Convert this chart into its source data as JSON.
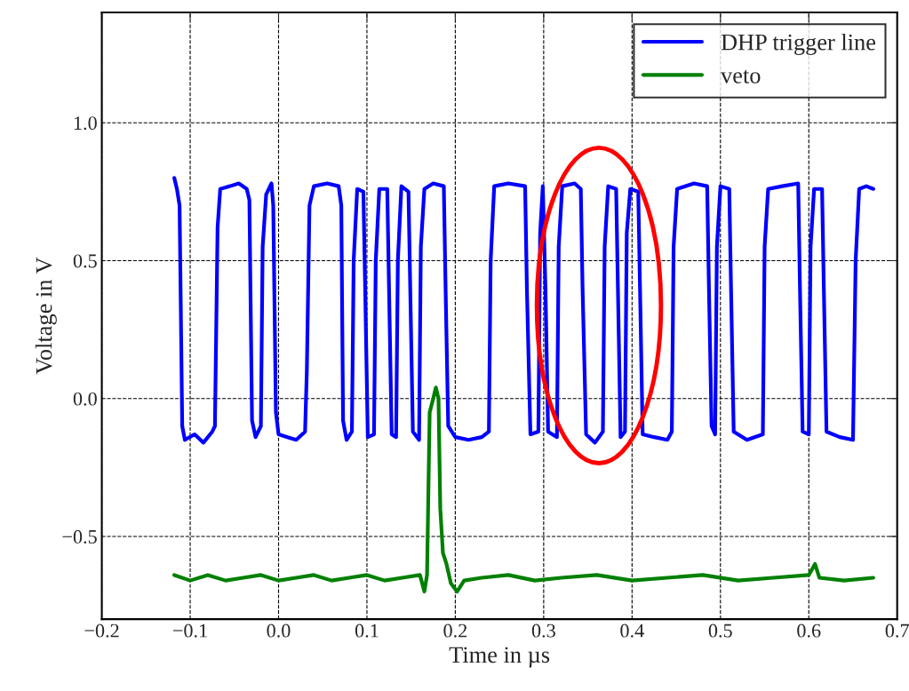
{
  "chart_data": {
    "type": "line",
    "xlabel": "Time in µs",
    "ylabel": "Voltage in V",
    "xlim": [
      -0.2,
      0.7
    ],
    "xticks": [
      {
        "value": -0.2,
        "label": "−0.2"
      },
      {
        "value": -0.1,
        "label": "−0.1"
      },
      {
        "value": 0.0,
        "label": "0.0"
      },
      {
        "value": 0.1,
        "label": "0.1"
      },
      {
        "value": 0.2,
        "label": "0.2"
      },
      {
        "value": 0.3,
        "label": "0.3"
      },
      {
        "value": 0.4,
        "label": "0.4"
      },
      {
        "value": 0.5,
        "label": "0.5"
      },
      {
        "value": 0.6,
        "label": "0.6"
      },
      {
        "value": 0.7,
        "label": "0.7"
      }
    ],
    "ylim": [
      -0.8,
      1.4
    ],
    "yticks": [
      {
        "value": -0.5,
        "label": "−0.5"
      },
      {
        "value": 0.0,
        "label": "0.0"
      },
      {
        "value": 0.5,
        "label": "0.5"
      },
      {
        "value": 1.0,
        "label": "1.0"
      }
    ],
    "grid": true,
    "legend": "top right",
    "marker": "none",
    "line_style": "solid",
    "series": [
      {
        "name": "DHP trigger line",
        "color": "#0000ff",
        "x": [
          -0.118,
          -0.115,
          -0.112,
          -0.109,
          -0.106,
          -0.095,
          -0.085,
          -0.075,
          -0.072,
          -0.069,
          -0.066,
          -0.055,
          -0.045,
          -0.036,
          -0.033,
          -0.03,
          -0.026,
          -0.02,
          -0.018,
          -0.014,
          -0.008,
          -0.006,
          -0.003,
          0.0,
          0.01,
          0.02,
          0.03,
          0.032,
          0.035,
          0.04,
          0.055,
          0.068,
          0.071,
          0.073,
          0.077,
          0.083,
          0.085,
          0.089,
          0.096,
          0.098,
          0.101,
          0.108,
          0.11,
          0.114,
          0.123,
          0.125,
          0.128,
          0.133,
          0.135,
          0.139,
          0.147,
          0.149,
          0.152,
          0.159,
          0.161,
          0.165,
          0.175,
          0.187,
          0.189,
          0.192,
          0.2,
          0.215,
          0.23,
          0.238,
          0.24,
          0.244,
          0.26,
          0.279,
          0.281,
          0.285,
          0.294,
          0.296,
          0.299,
          0.302,
          0.305,
          0.315,
          0.317,
          0.321,
          0.335,
          0.342,
          0.344,
          0.348,
          0.358,
          0.367,
          0.369,
          0.373,
          0.382,
          0.384,
          0.387,
          0.392,
          0.394,
          0.398,
          0.407,
          0.409,
          0.412,
          0.425,
          0.44,
          0.445,
          0.447,
          0.451,
          0.47,
          0.485,
          0.487,
          0.49,
          0.494,
          0.496,
          0.5,
          0.51,
          0.512,
          0.515,
          0.53,
          0.548,
          0.55,
          0.554,
          0.57,
          0.588,
          0.59,
          0.593,
          0.6,
          0.602,
          0.606,
          0.615,
          0.617,
          0.62,
          0.635,
          0.65,
          0.653,
          0.657,
          0.665,
          0.673
        ],
        "values": [
          0.8,
          0.76,
          0.7,
          -0.1,
          -0.15,
          -0.13,
          -0.16,
          -0.12,
          -0.1,
          0.62,
          0.76,
          0.77,
          0.78,
          0.76,
          0.72,
          -0.08,
          -0.14,
          -0.1,
          0.55,
          0.74,
          0.78,
          0.7,
          -0.05,
          -0.13,
          -0.14,
          -0.15,
          -0.12,
          0.1,
          0.7,
          0.77,
          0.78,
          0.77,
          0.7,
          -0.08,
          -0.15,
          -0.12,
          0.5,
          0.76,
          0.75,
          0.4,
          -0.14,
          -0.13,
          0.5,
          0.76,
          0.76,
          0.4,
          -0.13,
          -0.14,
          0.5,
          0.77,
          0.75,
          0.4,
          -0.12,
          -0.15,
          0.55,
          0.76,
          0.78,
          0.77,
          0.4,
          -0.1,
          -0.14,
          -0.15,
          -0.14,
          -0.12,
          0.5,
          0.77,
          0.78,
          0.77,
          0.4,
          -0.13,
          -0.12,
          0.6,
          0.77,
          0.4,
          -0.12,
          -0.14,
          0.55,
          0.77,
          0.78,
          0.76,
          0.4,
          -0.13,
          -0.16,
          -0.12,
          0.55,
          0.77,
          0.76,
          0.4,
          -0.14,
          -0.12,
          0.6,
          0.76,
          0.75,
          0.4,
          -0.13,
          -0.14,
          -0.15,
          -0.12,
          0.55,
          0.76,
          0.78,
          0.77,
          0.4,
          -0.1,
          -0.13,
          0.55,
          0.77,
          0.76,
          0.4,
          -0.12,
          -0.15,
          -0.13,
          0.55,
          0.76,
          0.77,
          0.78,
          0.4,
          -0.12,
          -0.13,
          0.55,
          0.76,
          0.76,
          0.4,
          -0.12,
          -0.14,
          -0.15,
          0.5,
          0.76,
          0.77,
          0.76
        ]
      },
      {
        "name": "veto",
        "color": "#008000",
        "x": [
          -0.118,
          -0.1,
          -0.08,
          -0.06,
          -0.04,
          -0.02,
          0.0,
          0.02,
          0.04,
          0.06,
          0.08,
          0.1,
          0.12,
          0.14,
          0.16,
          0.165,
          0.168,
          0.171,
          0.175,
          0.178,
          0.181,
          0.183,
          0.186,
          0.19,
          0.195,
          0.202,
          0.21,
          0.23,
          0.26,
          0.29,
          0.32,
          0.36,
          0.4,
          0.44,
          0.48,
          0.52,
          0.56,
          0.6,
          0.607,
          0.612,
          0.64,
          0.673
        ],
        "values": [
          -0.64,
          -0.66,
          -0.64,
          -0.66,
          -0.65,
          -0.64,
          -0.66,
          -0.65,
          -0.64,
          -0.66,
          -0.65,
          -0.64,
          -0.66,
          -0.65,
          -0.64,
          -0.7,
          -0.64,
          -0.05,
          0.0,
          0.04,
          0.0,
          -0.4,
          -0.56,
          -0.6,
          -0.67,
          -0.7,
          -0.66,
          -0.65,
          -0.64,
          -0.66,
          -0.65,
          -0.64,
          -0.66,
          -0.65,
          -0.64,
          -0.66,
          -0.65,
          -0.64,
          -0.6,
          -0.65,
          -0.66,
          -0.65
        ]
      }
    ]
  }
}
